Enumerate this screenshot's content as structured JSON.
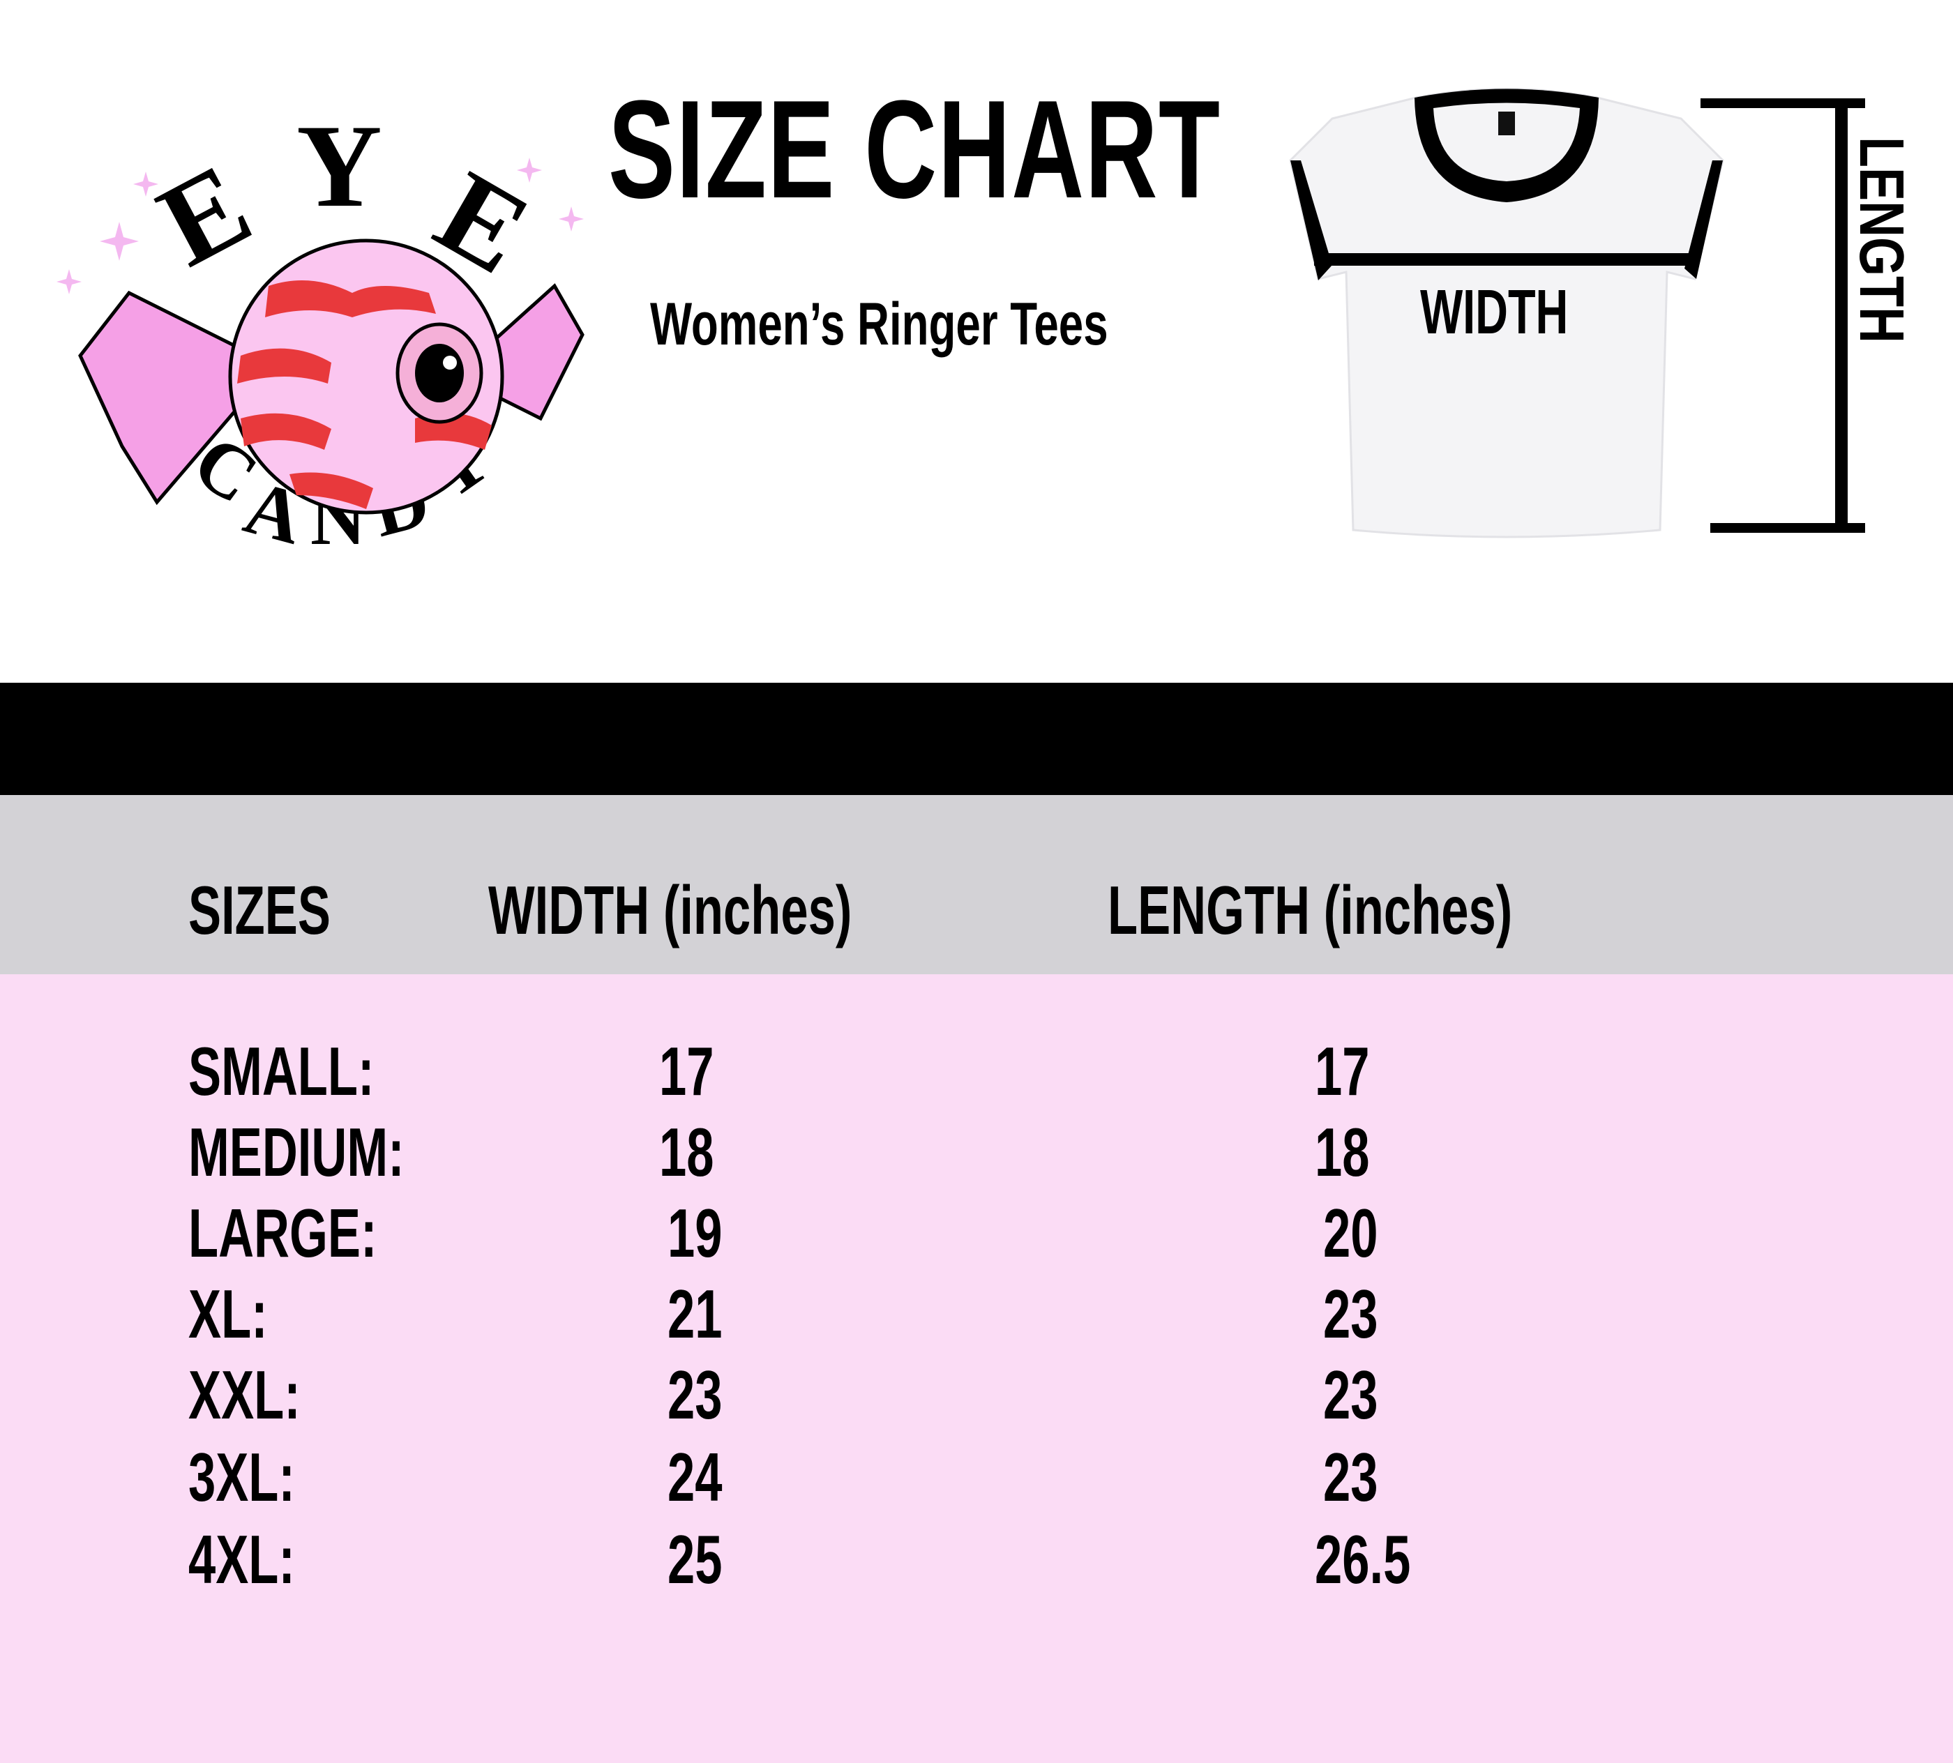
{
  "header": {
    "title": "SIZE CHART",
    "subtitle": "Women’s Ringer Tees",
    "logo": {
      "text_top": "EYE",
      "text_bottom": "CANDY",
      "icon": "eyeball-candy-logo"
    },
    "diagram": {
      "width_label": "WIDTH",
      "length_label": "LENGTH",
      "image": "ringer-tee-photo"
    }
  },
  "colors": {
    "header_band": "#d3d2d6",
    "table_body": "#fbdcf5",
    "bar": "#000000",
    "candy_red": "#e8393c",
    "candy_pink": "#f5a0e6"
  },
  "table": {
    "columns": [
      "SIZES",
      "WIDTH (inches)",
      "LENGTH (inches)"
    ],
    "rows": [
      {
        "size": "SMALL:",
        "width": "17",
        "length": "17"
      },
      {
        "size": "MEDIUM:",
        "width": "18",
        "length": "18"
      },
      {
        "size": "LARGE:",
        "width": "19",
        "length": "20"
      },
      {
        "size": "XL:",
        "width": "21",
        "length": "23"
      },
      {
        "size": "XXL:",
        "width": "23",
        "length": "23"
      },
      {
        "size": "3XL:",
        "width": "24",
        "length": "23"
      },
      {
        "size": "4XL:",
        "width": "25",
        "length": "26.5"
      }
    ]
  }
}
